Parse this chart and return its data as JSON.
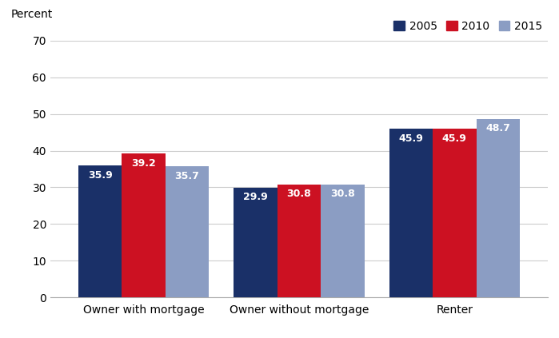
{
  "categories": [
    "Owner with mortgage",
    "Owner without mortgage",
    "Renter"
  ],
  "years": [
    "2005",
    "2010",
    "2015"
  ],
  "values": {
    "Owner with mortgage": [
      35.9,
      39.2,
      35.7
    ],
    "Owner without mortgage": [
      29.9,
      30.8,
      30.8
    ],
    "Renter": [
      45.9,
      45.9,
      48.7
    ]
  },
  "colors": {
    "2005": "#1a3068",
    "2010": "#cc1122",
    "2015": "#8b9dc3"
  },
  "label_colors": {
    "2005": "#ffffff",
    "2010": "#ffffff",
    "2015": "#ffffff"
  },
  "ylabel": "Percent",
  "ylim": [
    0,
    70
  ],
  "yticks": [
    0,
    10,
    20,
    30,
    40,
    50,
    60,
    70
  ],
  "bar_width": 0.28,
  "tick_fontsize": 10,
  "label_fontsize": 10,
  "legend_fontsize": 10,
  "value_fontsize": 9,
  "background_color": "#ffffff"
}
